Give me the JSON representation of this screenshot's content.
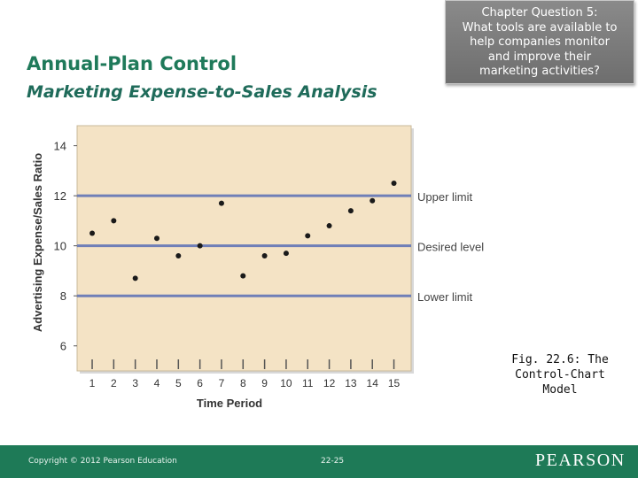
{
  "slide": {
    "title": "Annual-Plan Control",
    "subtitle": "Marketing Expense-to-Sales Analysis",
    "question_lines": [
      "Chapter Question 5:",
      "What tools are available to",
      "help companies monitor",
      "and improve their",
      "marketing activities?"
    ],
    "caption_lines": [
      "Fig. 22.6: The",
      "Control-Chart",
      "Model"
    ],
    "footer": {
      "copyright": "Copyright © 2012 Pearson Education",
      "page": "22-25",
      "logo": "PEARSON"
    },
    "colors": {
      "title": "#1f7a5a",
      "footer_bg": "#1e7a57",
      "plot_bg": "#f4e3c5",
      "control_line": "#6f7fb8",
      "point": "#1a1a1a"
    }
  },
  "chart_data": {
    "type": "scatter",
    "title": "",
    "xlabel": "Time Period",
    "ylabel": "Advertising Expense/Sales Ratio",
    "x": [
      1,
      2,
      3,
      4,
      5,
      6,
      7,
      8,
      9,
      10,
      11,
      12,
      13,
      14,
      15
    ],
    "y": [
      10.5,
      11.0,
      8.7,
      10.3,
      9.6,
      10.0,
      11.7,
      8.8,
      9.6,
      9.7,
      10.4,
      10.8,
      11.4,
      11.8,
      12.5
    ],
    "xticks": [
      "1",
      "2",
      "3",
      "4",
      "5",
      "6",
      "7",
      "8",
      "9",
      "10",
      "11",
      "12",
      "13",
      "14",
      "15"
    ],
    "yticks": [
      6,
      8,
      10,
      12,
      14
    ],
    "ylim": [
      5,
      14.8
    ],
    "xlim": [
      0.3,
      15.8
    ],
    "reference_lines": [
      {
        "label": "Upper limit",
        "value": 12
      },
      {
        "label": "Desired level",
        "value": 10
      },
      {
        "label": "Lower limit",
        "value": 8
      }
    ],
    "grid": false
  }
}
